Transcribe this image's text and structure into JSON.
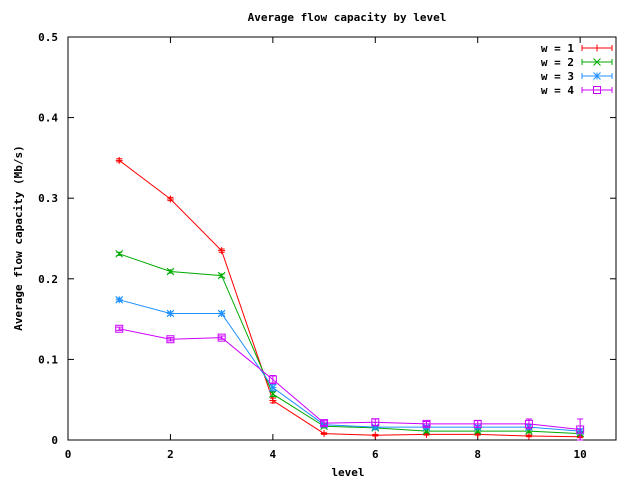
{
  "chart_data": {
    "type": "line",
    "title": "Average flow capacity by level",
    "xlabel": "level",
    "ylabel": "Average flow capacity (Mb/s)",
    "xlim": [
      0,
      10.7
    ],
    "ylim": [
      0,
      0.5
    ],
    "xticks": [
      "0",
      "2",
      "4",
      "6",
      "8",
      "10"
    ],
    "yticks": [
      "0",
      "0.1",
      "0.2",
      "0.3",
      "0.4",
      "0.5"
    ],
    "legend_position": "top-right",
    "series": [
      {
        "name": "w = 1",
        "color": "#ff0000",
        "marker": "plus",
        "x": [
          1,
          2,
          3,
          4,
          5,
          6,
          7,
          8,
          9,
          10
        ],
        "y": [
          0.347,
          0.299,
          0.235,
          0.049,
          0.008,
          0.006,
          0.007,
          0.007,
          0.005,
          0.004
        ],
        "err": [
          0.002,
          0.002,
          0.002,
          0.003,
          0.001,
          0.001,
          0.001,
          0.001,
          0.001,
          0.001
        ]
      },
      {
        "name": "w = 2",
        "color": "#00aa00",
        "marker": "cross",
        "x": [
          1,
          2,
          3,
          4,
          5,
          6,
          7,
          8,
          9,
          10
        ],
        "y": [
          0.231,
          0.209,
          0.204,
          0.057,
          0.017,
          0.015,
          0.011,
          0.011,
          0.011,
          0.008
        ],
        "err": [
          0.002,
          0.002,
          0.002,
          0.003,
          0.002,
          0.002,
          0.002,
          0.002,
          0.002,
          0.002
        ]
      },
      {
        "name": "w = 3",
        "color": "#1e90ff",
        "marker": "star",
        "x": [
          1,
          2,
          3,
          4,
          5,
          6,
          7,
          8,
          9,
          10
        ],
        "y": [
          0.174,
          0.157,
          0.157,
          0.065,
          0.019,
          0.016,
          0.016,
          0.016,
          0.016,
          0.011
        ],
        "err": [
          0.002,
          0.002,
          0.002,
          0.004,
          0.002,
          0.002,
          0.002,
          0.002,
          0.003,
          0.003
        ]
      },
      {
        "name": "w = 4",
        "color": "#cc00ff",
        "marker": "box",
        "x": [
          1,
          2,
          3,
          4,
          5,
          6,
          7,
          8,
          9,
          10
        ],
        "y": [
          0.138,
          0.125,
          0.127,
          0.075,
          0.021,
          0.022,
          0.02,
          0.02,
          0.02,
          0.013
        ],
        "err": [
          0.002,
          0.002,
          0.002,
          0.005,
          0.003,
          0.004,
          0.003,
          0.004,
          0.006,
          0.013
        ]
      }
    ]
  }
}
